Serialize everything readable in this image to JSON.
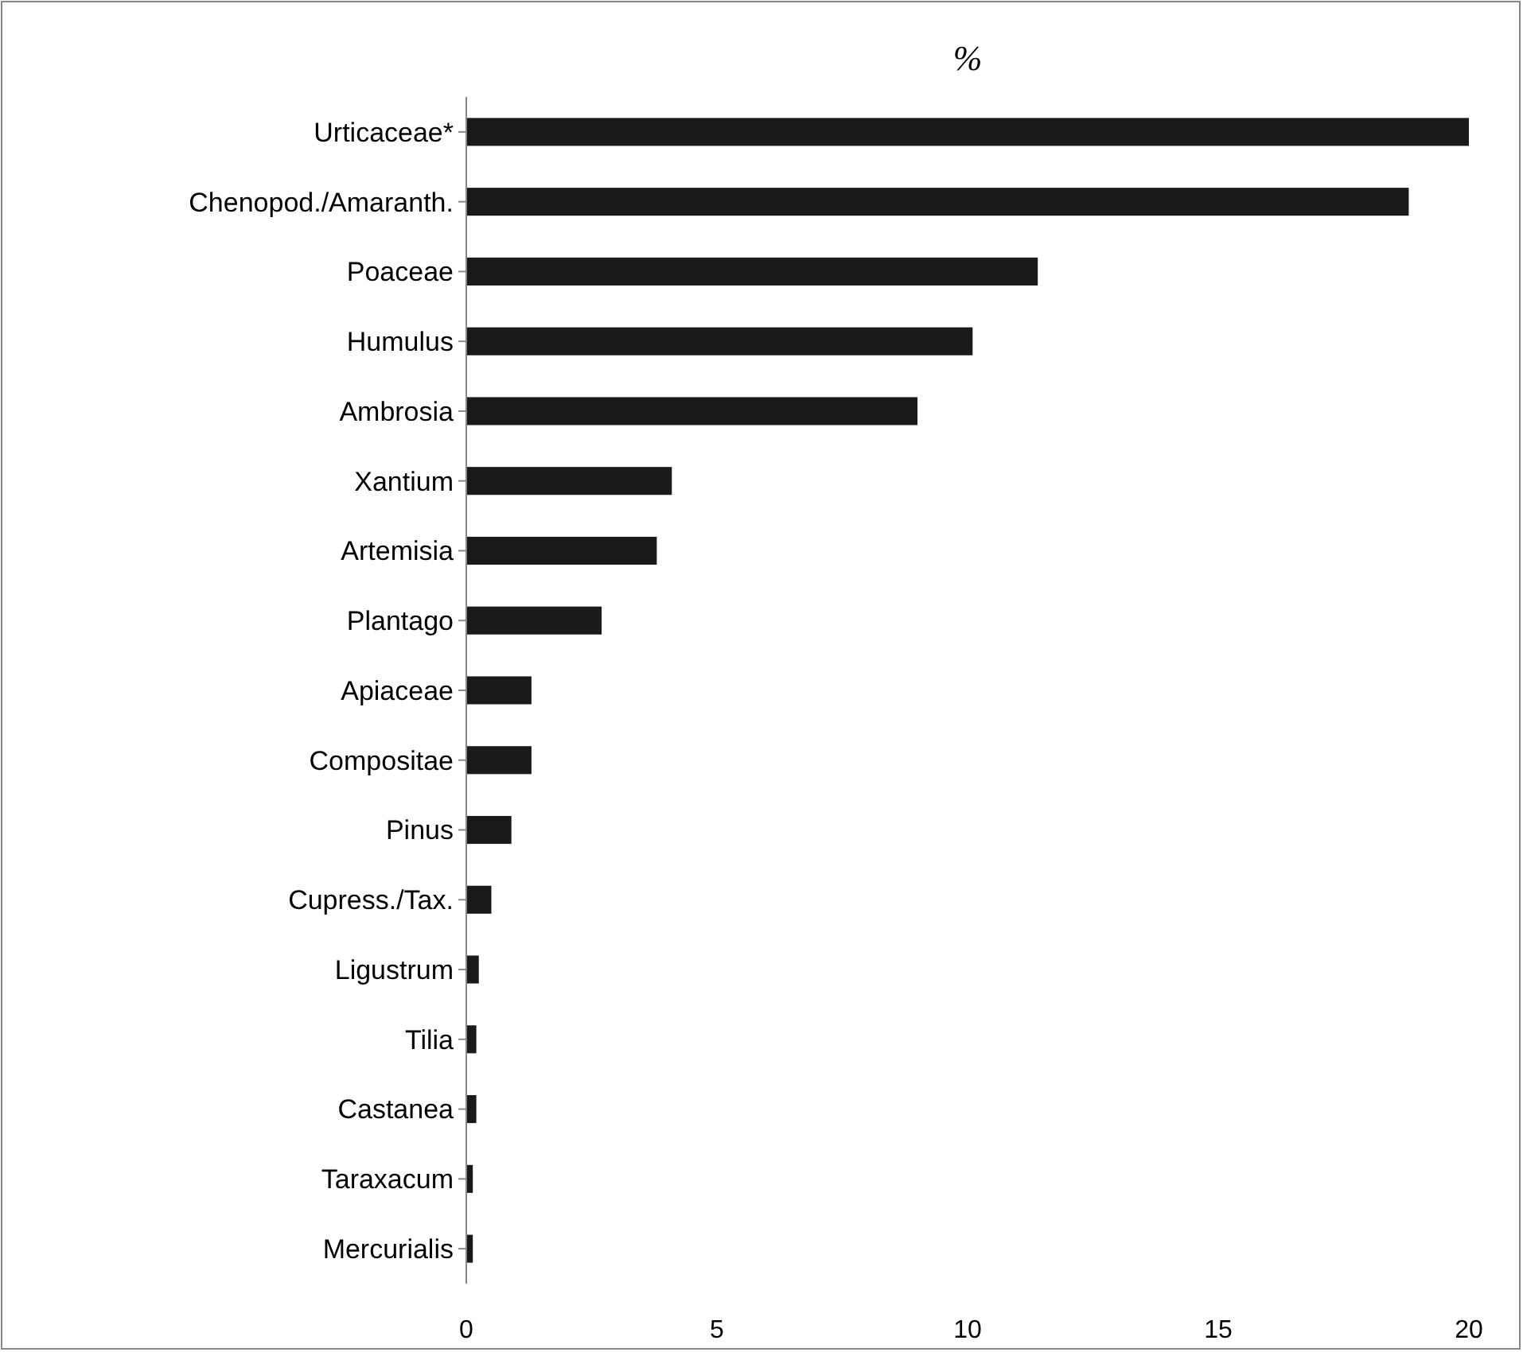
{
  "chart_data": {
    "type": "bar",
    "orientation": "horizontal",
    "title": "%",
    "categories": [
      "Urticaceae*",
      "Chenopod./Amaranth.",
      "Poaceae",
      "Humulus",
      "Ambrosia",
      "Xantium",
      "Artemisia",
      "Plantago",
      "Apiaceae",
      "Compositae",
      "Pinus",
      "Cupress./Tax.",
      "Ligustrum",
      "Tilia",
      "Castanea",
      "Taraxacum",
      "Mercurialis"
    ],
    "values": [
      20,
      18.8,
      11.4,
      10.1,
      9,
      4.1,
      3.8,
      2.7,
      1.3,
      1.3,
      0.9,
      0.5,
      0.25,
      0.2,
      0.2,
      0.13,
      0.13
    ],
    "color": "#1a1a1a",
    "xlim": [
      0,
      20
    ],
    "xticks": [
      0,
      5,
      10,
      15,
      20
    ],
    "grid": false
  }
}
